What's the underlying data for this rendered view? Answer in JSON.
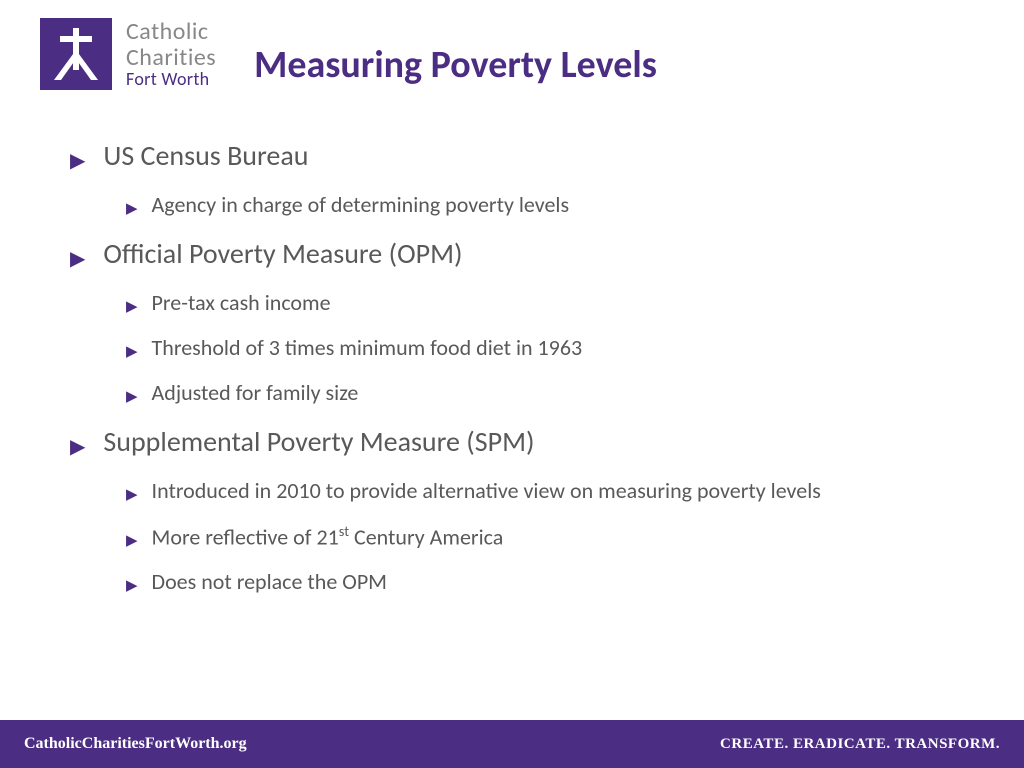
{
  "logo": {
    "line1": "Catholic",
    "line2": "Charities",
    "line3": "Fort Worth",
    "bg_color": "#4b2e83",
    "text_gray": "#888888"
  },
  "title": "Measuring Poverty Levels",
  "accent_color": "#4b2e83",
  "body_text_color": "#595959",
  "bullets": [
    {
      "text": "US Census Bureau",
      "sub": [
        "Agency in charge of determining poverty levels"
      ]
    },
    {
      "text": "Official Poverty Measure (OPM)",
      "sub": [
        "Pre-tax cash income",
        "Threshold of 3 times minimum food diet in 1963",
        "Adjusted for family size"
      ]
    },
    {
      "text": "Supplemental Poverty Measure (SPM)",
      "sub": [
        "Introduced in 2010 to provide alternative view on measuring poverty levels",
        "More reflective of 21<sup>st</sup> Century America",
        "Does not replace the OPM"
      ]
    }
  ],
  "footer": {
    "left": "CatholicCharitiesFortWorth.org",
    "right": "CREATE. ERADICATE. TRANSFORM.",
    "bg_color": "#4b2e83"
  }
}
